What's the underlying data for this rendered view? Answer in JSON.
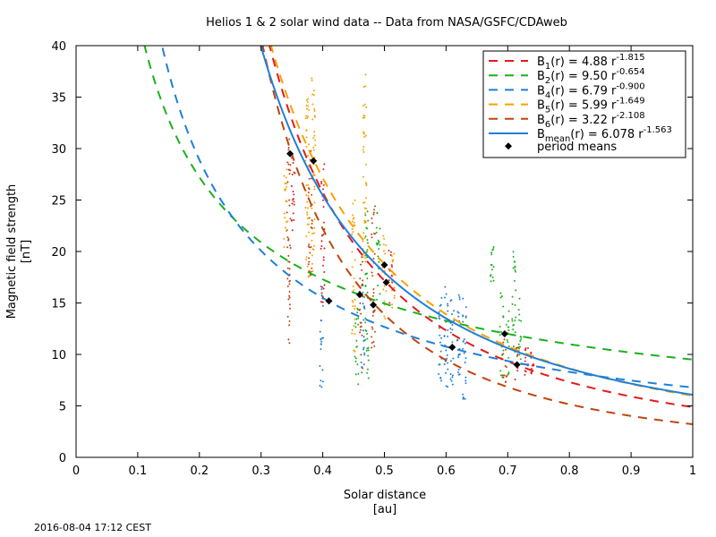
{
  "chart_data": {
    "type": "line",
    "title": "Helios 1 & 2 solar wind data  --  Data from NASA/GSFC/CDAweb",
    "xlabel": "Solar distance",
    "xunit": "[au]",
    "ylabel": "Magnetic field strength",
    "yunit": "[nT]",
    "xlim": [
      0,
      1
    ],
    "ylim": [
      0,
      40
    ],
    "xticks": [
      "0",
      "0.1",
      "0.2",
      "0.3",
      "0.4",
      "0.5",
      "0.6",
      "0.7",
      "0.8",
      "0.9",
      "1"
    ],
    "yticks": [
      "0",
      "5",
      "10",
      "15",
      "20",
      "25",
      "30",
      "35",
      "40"
    ],
    "grid": false,
    "legend_position": "top-right",
    "fits": [
      {
        "label_base": "B",
        "label_sub": "1",
        "label_mid": "(r) = 4.88 r",
        "label_exp": "-1.815",
        "a": 4.88,
        "b": -1.815,
        "color": "#e41a1c",
        "style": "dashed"
      },
      {
        "label_base": "B",
        "label_sub": "2",
        "label_mid": "(r) = 9.50 r",
        "label_exp": "-0.654",
        "a": 9.5,
        "b": -0.654,
        "color": "#1cb01c",
        "style": "dashed"
      },
      {
        "label_base": "B",
        "label_sub": "4",
        "label_mid": "(r) = 6.79 r",
        "label_exp": "-0.900",
        "a": 6.79,
        "b": -0.9,
        "color": "#1f7fd8",
        "style": "dashed"
      },
      {
        "label_base": "B",
        "label_sub": "5",
        "label_mid": "(r) = 5.99 r",
        "label_exp": "-1.649",
        "a": 5.99,
        "b": -1.649,
        "color": "#f5a300",
        "style": "dashed"
      },
      {
        "label_base": "B",
        "label_sub": "6",
        "label_mid": "(r) = 3.22 r",
        "label_exp": "-2.108",
        "a": 3.22,
        "b": -2.108,
        "color": "#c0440c",
        "style": "dashed"
      },
      {
        "label_base": "B",
        "label_sub": "mean",
        "label_mid": "(r) = 6.078 r",
        "label_exp": "-1.563",
        "a": 6.078,
        "b": -1.563,
        "color": "#1f7fd8",
        "style": "solid"
      }
    ],
    "period_means_label": "period means",
    "period_means": [
      {
        "x": 0.347,
        "y": 29.5
      },
      {
        "x": 0.385,
        "y": 28.8
      },
      {
        "x": 0.41,
        "y": 15.2
      },
      {
        "x": 0.46,
        "y": 15.8
      },
      {
        "x": 0.482,
        "y": 14.8
      },
      {
        "x": 0.5,
        "y": 18.7
      },
      {
        "x": 0.503,
        "y": 17.0
      },
      {
        "x": 0.61,
        "y": 10.7
      },
      {
        "x": 0.695,
        "y": 12.0
      },
      {
        "x": 0.715,
        "y": 9.0
      }
    ],
    "scatter_clusters": [
      {
        "color": "#c0440c",
        "x": 0.345,
        "ymin": 11,
        "ymax": 31
      },
      {
        "color": "#f5a300",
        "x": 0.34,
        "ymin": 18,
        "ymax": 28
      },
      {
        "color": "#e41a1c",
        "x": 0.352,
        "ymin": 22,
        "ymax": 30
      },
      {
        "color": "#f5a300",
        "x": 0.375,
        "ymin": 17,
        "ymax": 35
      },
      {
        "color": "#f5a300",
        "x": 0.385,
        "ymin": 18,
        "ymax": 37
      },
      {
        "color": "#c0440c",
        "x": 0.38,
        "ymin": 17,
        "ymax": 30
      },
      {
        "color": "#1f7fd8",
        "x": 0.398,
        "ymin": 6.5,
        "ymax": 17
      },
      {
        "color": "#e41a1c",
        "x": 0.4,
        "ymin": 15,
        "ymax": 29
      },
      {
        "color": "#f5a300",
        "x": 0.45,
        "ymin": 10,
        "ymax": 25
      },
      {
        "color": "#1cb01c",
        "x": 0.455,
        "ymin": 7,
        "ymax": 16
      },
      {
        "color": "#c0440c",
        "x": 0.462,
        "ymin": 8,
        "ymax": 20
      },
      {
        "color": "#1f7fd8",
        "x": 0.465,
        "ymin": 8,
        "ymax": 17
      },
      {
        "color": "#1cb01c",
        "x": 0.472,
        "ymin": 7.5,
        "ymax": 25
      },
      {
        "color": "#f5a300",
        "x": 0.468,
        "ymin": 19,
        "ymax": 38
      },
      {
        "color": "#c0440c",
        "x": 0.482,
        "ymin": 10,
        "ymax": 25
      },
      {
        "color": "#1cb01c",
        "x": 0.49,
        "ymin": 15,
        "ymax": 24
      },
      {
        "color": "#f5a300",
        "x": 0.5,
        "ymin": 13,
        "ymax": 22
      },
      {
        "color": "#e41a1c",
        "x": 0.51,
        "ymin": 15,
        "ymax": 21
      },
      {
        "color": "#f5a300",
        "x": 0.515,
        "ymin": 14,
        "ymax": 20
      },
      {
        "color": "#1f7fd8",
        "x": 0.59,
        "ymin": 7,
        "ymax": 16
      },
      {
        "color": "#1f7fd8",
        "x": 0.6,
        "ymin": 6,
        "ymax": 17
      },
      {
        "color": "#1f7fd8",
        "x": 0.61,
        "ymin": 7,
        "ymax": 16
      },
      {
        "color": "#1f7fd8",
        "x": 0.62,
        "ymin": 8,
        "ymax": 16
      },
      {
        "color": "#1f7fd8",
        "x": 0.63,
        "ymin": 5.5,
        "ymax": 16
      },
      {
        "color": "#1cb01c",
        "x": 0.675,
        "ymin": 17,
        "ymax": 20.5
      },
      {
        "color": "#1cb01c",
        "x": 0.69,
        "ymin": 7,
        "ymax": 16
      },
      {
        "color": "#c0440c",
        "x": 0.695,
        "ymin": 7,
        "ymax": 12
      },
      {
        "color": "#1cb01c",
        "x": 0.7,
        "ymin": 8,
        "ymax": 15
      },
      {
        "color": "#1cb01c",
        "x": 0.71,
        "ymin": 10,
        "ymax": 21
      },
      {
        "color": "#e41a1c",
        "x": 0.715,
        "ymin": 7.5,
        "ymax": 11
      },
      {
        "color": "#1cb01c",
        "x": 0.72,
        "ymin": 9,
        "ymax": 16
      },
      {
        "color": "#e41a1c",
        "x": 0.73,
        "ymin": 8,
        "ymax": 11
      },
      {
        "color": "#e41a1c",
        "x": 0.74,
        "ymin": 8,
        "ymax": 10.5
      }
    ]
  },
  "timestamp": "2016-08-04 17:12 CEST"
}
